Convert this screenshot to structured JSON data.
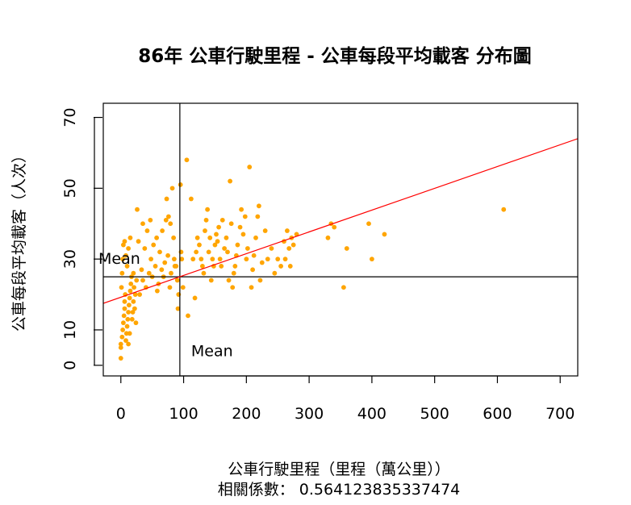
{
  "colors": {
    "points": "#FFA500",
    "fit_line": "#FF0000",
    "axes": "#000000",
    "background": "#FFFFFF"
  },
  "chart_data": {
    "type": "scatter",
    "title": "86年 公車行駛里程 - 公車每段平均載客 分布圖",
    "xlabel": "公車行駛里程（里程（萬公里））",
    "ylabel": "公車每段平均載客（人次）",
    "subtitle": "相關係數： 0.564123835337474",
    "xlim": [
      -28,
      728
    ],
    "ylim": [
      -3,
      74
    ],
    "x_ticks": [
      0,
      100,
      200,
      300,
      400,
      500,
      600,
      700
    ],
    "y_ticks": [
      0,
      10,
      30,
      50,
      70
    ],
    "x_mean": 94,
    "y_mean": 25,
    "x_mean_label": "Mean",
    "y_mean_label": "Mean",
    "fit_line": {
      "x0": -28,
      "y0": 17.5,
      "x1": 728,
      "y1": 64
    },
    "grid": false,
    "legend": "none",
    "points": [
      [
        0,
        2
      ],
      [
        0,
        5
      ],
      [
        0,
        6
      ],
      [
        2,
        8
      ],
      [
        3,
        10
      ],
      [
        4,
        12
      ],
      [
        5,
        14
      ],
      [
        6,
        16
      ],
      [
        6,
        18
      ],
      [
        7,
        20
      ],
      [
        8,
        7
      ],
      [
        9,
        9
      ],
      [
        10,
        11
      ],
      [
        11,
        13
      ],
      [
        12,
        15
      ],
      [
        13,
        17
      ],
      [
        14,
        19
      ],
      [
        15,
        21
      ],
      [
        16,
        23
      ],
      [
        17,
        25
      ],
      [
        18,
        13
      ],
      [
        19,
        15
      ],
      [
        20,
        18
      ],
      [
        21,
        22
      ],
      [
        22,
        16
      ],
      [
        23,
        20
      ],
      [
        25,
        24
      ],
      [
        24,
        12
      ],
      [
        14,
        9
      ],
      [
        12,
        6
      ],
      [
        1,
        22
      ],
      [
        2,
        26
      ],
      [
        3,
        30
      ],
      [
        4,
        34
      ],
      [
        6,
        35
      ],
      [
        10,
        28
      ],
      [
        12,
        33
      ],
      [
        15,
        36
      ],
      [
        8,
        31
      ],
      [
        20,
        26
      ],
      [
        30,
        20
      ],
      [
        35,
        24
      ],
      [
        40,
        22
      ],
      [
        45,
        26
      ],
      [
        50,
        25
      ],
      [
        55,
        28
      ],
      [
        60,
        23
      ],
      [
        65,
        27
      ],
      [
        70,
        29
      ],
      [
        75,
        31
      ],
      [
        80,
        26
      ],
      [
        85,
        30
      ],
      [
        90,
        24
      ],
      [
        92,
        20
      ],
      [
        88,
        28
      ],
      [
        78,
        22
      ],
      [
        68,
        25
      ],
      [
        58,
        21
      ],
      [
        48,
        30
      ],
      [
        38,
        33
      ],
      [
        33,
        27
      ],
      [
        28,
        35
      ],
      [
        26,
        44
      ],
      [
        35,
        40
      ],
      [
        42,
        38
      ],
      [
        47,
        41
      ],
      [
        52,
        34
      ],
      [
        57,
        36
      ],
      [
        62,
        32
      ],
      [
        66,
        38
      ],
      [
        72,
        41
      ],
      [
        76,
        42
      ],
      [
        79,
        40
      ],
      [
        73,
        47
      ],
      [
        82,
        50
      ],
      [
        95,
        51
      ],
      [
        96,
        32
      ],
      [
        84,
        36
      ],
      [
        86,
        28
      ],
      [
        91,
        16
      ],
      [
        99,
        22
      ],
      [
        97,
        30
      ],
      [
        105,
        58
      ],
      [
        107,
        14
      ],
      [
        112,
        47
      ],
      [
        115,
        30
      ],
      [
        118,
        19
      ],
      [
        120,
        32
      ],
      [
        122,
        36
      ],
      [
        125,
        34
      ],
      [
        128,
        30
      ],
      [
        130,
        28
      ],
      [
        132,
        26
      ],
      [
        134,
        38
      ],
      [
        136,
        41
      ],
      [
        138,
        44
      ],
      [
        140,
        32
      ],
      [
        142,
        36
      ],
      [
        144,
        24
      ],
      [
        146,
        30
      ],
      [
        148,
        28
      ],
      [
        150,
        34
      ],
      [
        152,
        37
      ],
      [
        154,
        35
      ],
      [
        156,
        39
      ],
      [
        158,
        30
      ],
      [
        160,
        28
      ],
      [
        162,
        41
      ],
      [
        165,
        33
      ],
      [
        168,
        36
      ],
      [
        170,
        32
      ],
      [
        172,
        24
      ],
      [
        174,
        52
      ],
      [
        176,
        40
      ],
      [
        178,
        22
      ],
      [
        180,
        26
      ],
      [
        182,
        28
      ],
      [
        184,
        31
      ],
      [
        186,
        34
      ],
      [
        190,
        39
      ],
      [
        192,
        44
      ],
      [
        195,
        37
      ],
      [
        198,
        42
      ],
      [
        200,
        30
      ],
      [
        202,
        33
      ],
      [
        205,
        56
      ],
      [
        208,
        22
      ],
      [
        210,
        27
      ],
      [
        212,
        31
      ],
      [
        215,
        36
      ],
      [
        218,
        42
      ],
      [
        220,
        45
      ],
      [
        222,
        24
      ],
      [
        225,
        29
      ],
      [
        230,
        38
      ],
      [
        234,
        30
      ],
      [
        240,
        33
      ],
      [
        245,
        26
      ],
      [
        250,
        30
      ],
      [
        255,
        28
      ],
      [
        260,
        35
      ],
      [
        262,
        30
      ],
      [
        265,
        38
      ],
      [
        268,
        33
      ],
      [
        270,
        28
      ],
      [
        272,
        36
      ],
      [
        275,
        34
      ],
      [
        280,
        37
      ],
      [
        330,
        36
      ],
      [
        335,
        40
      ],
      [
        340,
        39
      ],
      [
        355,
        22
      ],
      [
        360,
        33
      ],
      [
        395,
        40
      ],
      [
        400,
        30
      ],
      [
        420,
        37
      ],
      [
        610,
        44
      ]
    ]
  }
}
